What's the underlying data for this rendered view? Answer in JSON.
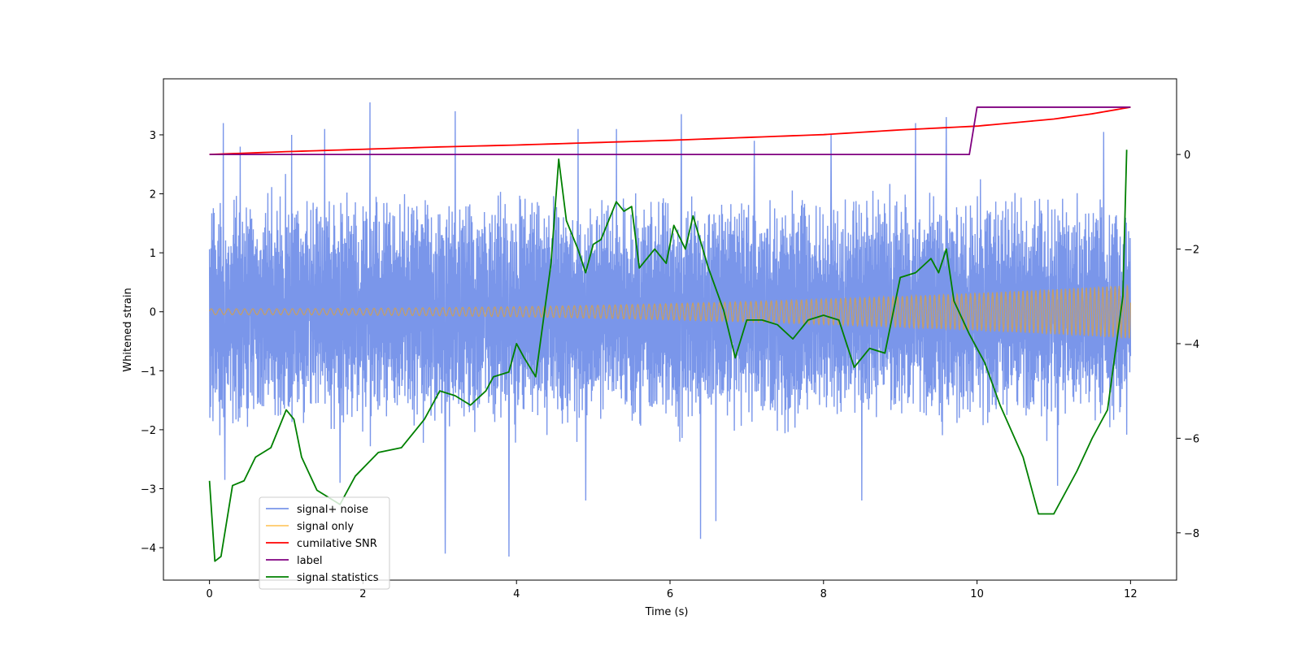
{
  "chart_data": {
    "type": "line",
    "xlabel": "Time (s)",
    "ylabel": "Whitened strain",
    "xlim": [
      -0.6,
      12.6
    ],
    "ylim": [
      -4.55,
      3.95
    ],
    "y2lim": [
      -9.0,
      1.6
    ],
    "xticks": [
      0,
      2,
      4,
      6,
      8,
      10,
      12
    ],
    "yticks": [
      -4,
      -3,
      -2,
      -1,
      0,
      1,
      2,
      3
    ],
    "y2ticks": [
      -8,
      -6,
      -4,
      -2,
      0
    ],
    "grid": false,
    "legend_position": "lower-left",
    "noise": {
      "t_start": 0,
      "t_end": 12,
      "typical_amplitude": 1.6,
      "peak_values": [
        {
          "t": 0.18,
          "y": 3.2
        },
        {
          "t": 0.4,
          "y": 2.8
        },
        {
          "t": 1.07,
          "y": 3.0
        },
        {
          "t": 1.5,
          "y": 3.1
        },
        {
          "t": 2.09,
          "y": 3.55
        },
        {
          "t": 3.2,
          "y": 3.4
        },
        {
          "t": 4.8,
          "y": 3.1
        },
        {
          "t": 5.3,
          "y": 3.1
        },
        {
          "t": 6.15,
          "y": 3.35
        },
        {
          "t": 7.1,
          "y": 2.9
        },
        {
          "t": 8.1,
          "y": 3.0
        },
        {
          "t": 9.2,
          "y": 3.2
        },
        {
          "t": 9.6,
          "y": 3.3
        },
        {
          "t": 11.65,
          "y": 3.05
        },
        {
          "t": 0.2,
          "y": -2.85
        },
        {
          "t": 1.7,
          "y": -2.9
        },
        {
          "t": 3.07,
          "y": -4.1
        },
        {
          "t": 3.9,
          "y": -4.15
        },
        {
          "t": 4.9,
          "y": -3.2
        },
        {
          "t": 6.4,
          "y": -3.85
        },
        {
          "t": 6.6,
          "y": -3.55
        },
        {
          "t": 8.5,
          "y": -3.2
        },
        {
          "t": 11.05,
          "y": -2.95
        }
      ]
    },
    "signal": {
      "t_start": 0,
      "t_end": 12,
      "amp_start": 0.05,
      "amp_end": 0.45,
      "freq_start": 9,
      "freq_end": 19
    },
    "series": [
      {
        "name": "signal+ noise",
        "color": "#4169e1",
        "opacity": 0.7,
        "axis": "left"
      },
      {
        "name": "signal only",
        "color": "#ffa500",
        "opacity": 0.55,
        "axis": "left"
      },
      {
        "name": "cumilative SNR",
        "color": "#ff0000",
        "axis": "right",
        "points": [
          [
            0,
            0.0
          ],
          [
            1,
            0.06
          ],
          [
            2,
            0.11
          ],
          [
            3,
            0.16
          ],
          [
            4,
            0.2
          ],
          [
            5,
            0.25
          ],
          [
            6,
            0.3
          ],
          [
            7,
            0.36
          ],
          [
            8,
            0.42
          ],
          [
            9,
            0.52
          ],
          [
            10,
            0.6
          ],
          [
            11,
            0.75
          ],
          [
            11.5,
            0.86
          ],
          [
            12,
            1.0
          ]
        ]
      },
      {
        "name": "label",
        "color": "#800080",
        "axis": "right",
        "points": [
          [
            0,
            0
          ],
          [
            9.9,
            0
          ],
          [
            10.0,
            1
          ],
          [
            12,
            1
          ]
        ]
      },
      {
        "name": "signal statistics",
        "color": "#008000",
        "axis": "right",
        "points": [
          [
            0,
            -6.9
          ],
          [
            0.07,
            -8.6
          ],
          [
            0.15,
            -8.5
          ],
          [
            0.3,
            -7.0
          ],
          [
            0.45,
            -6.9
          ],
          [
            0.6,
            -6.4
          ],
          [
            0.8,
            -6.2
          ],
          [
            1.0,
            -5.4
          ],
          [
            1.1,
            -5.6
          ],
          [
            1.2,
            -6.4
          ],
          [
            1.4,
            -7.1
          ],
          [
            1.7,
            -7.4
          ],
          [
            1.9,
            -6.8
          ],
          [
            2.2,
            -6.3
          ],
          [
            2.5,
            -6.2
          ],
          [
            2.8,
            -5.6
          ],
          [
            3.0,
            -5.0
          ],
          [
            3.2,
            -5.1
          ],
          [
            3.4,
            -5.3
          ],
          [
            3.6,
            -5.0
          ],
          [
            3.7,
            -4.7
          ],
          [
            3.9,
            -4.6
          ],
          [
            4.0,
            -4.0
          ],
          [
            4.1,
            -4.3
          ],
          [
            4.25,
            -4.7
          ],
          [
            4.45,
            -2.3
          ],
          [
            4.55,
            -0.1
          ],
          [
            4.65,
            -1.4
          ],
          [
            4.8,
            -2.0
          ],
          [
            4.9,
            -2.5
          ],
          [
            5.0,
            -1.9
          ],
          [
            5.1,
            -1.8
          ],
          [
            5.2,
            -1.4
          ],
          [
            5.3,
            -1.0
          ],
          [
            5.4,
            -1.2
          ],
          [
            5.5,
            -1.1
          ],
          [
            5.6,
            -2.4
          ],
          [
            5.8,
            -2.0
          ],
          [
            5.95,
            -2.3
          ],
          [
            6.05,
            -1.5
          ],
          [
            6.2,
            -2.0
          ],
          [
            6.3,
            -1.3
          ],
          [
            6.5,
            -2.4
          ],
          [
            6.7,
            -3.3
          ],
          [
            6.85,
            -4.3
          ],
          [
            7.0,
            -3.5
          ],
          [
            7.2,
            -3.5
          ],
          [
            7.4,
            -3.6
          ],
          [
            7.6,
            -3.9
          ],
          [
            7.8,
            -3.5
          ],
          [
            8.0,
            -3.4
          ],
          [
            8.2,
            -3.5
          ],
          [
            8.4,
            -4.5
          ],
          [
            8.6,
            -4.1
          ],
          [
            8.8,
            -4.2
          ],
          [
            9.0,
            -2.6
          ],
          [
            9.2,
            -2.5
          ],
          [
            9.4,
            -2.2
          ],
          [
            9.5,
            -2.5
          ],
          [
            9.6,
            -2.0
          ],
          [
            9.7,
            -3.1
          ],
          [
            9.9,
            -3.8
          ],
          [
            10.1,
            -4.4
          ],
          [
            10.3,
            -5.3
          ],
          [
            10.6,
            -6.4
          ],
          [
            10.8,
            -7.6
          ],
          [
            11.0,
            -7.6
          ],
          [
            11.3,
            -6.7
          ],
          [
            11.5,
            -6.0
          ],
          [
            11.7,
            -5.4
          ],
          [
            11.9,
            -3.0
          ],
          [
            11.95,
            0.1
          ]
        ]
      }
    ]
  }
}
